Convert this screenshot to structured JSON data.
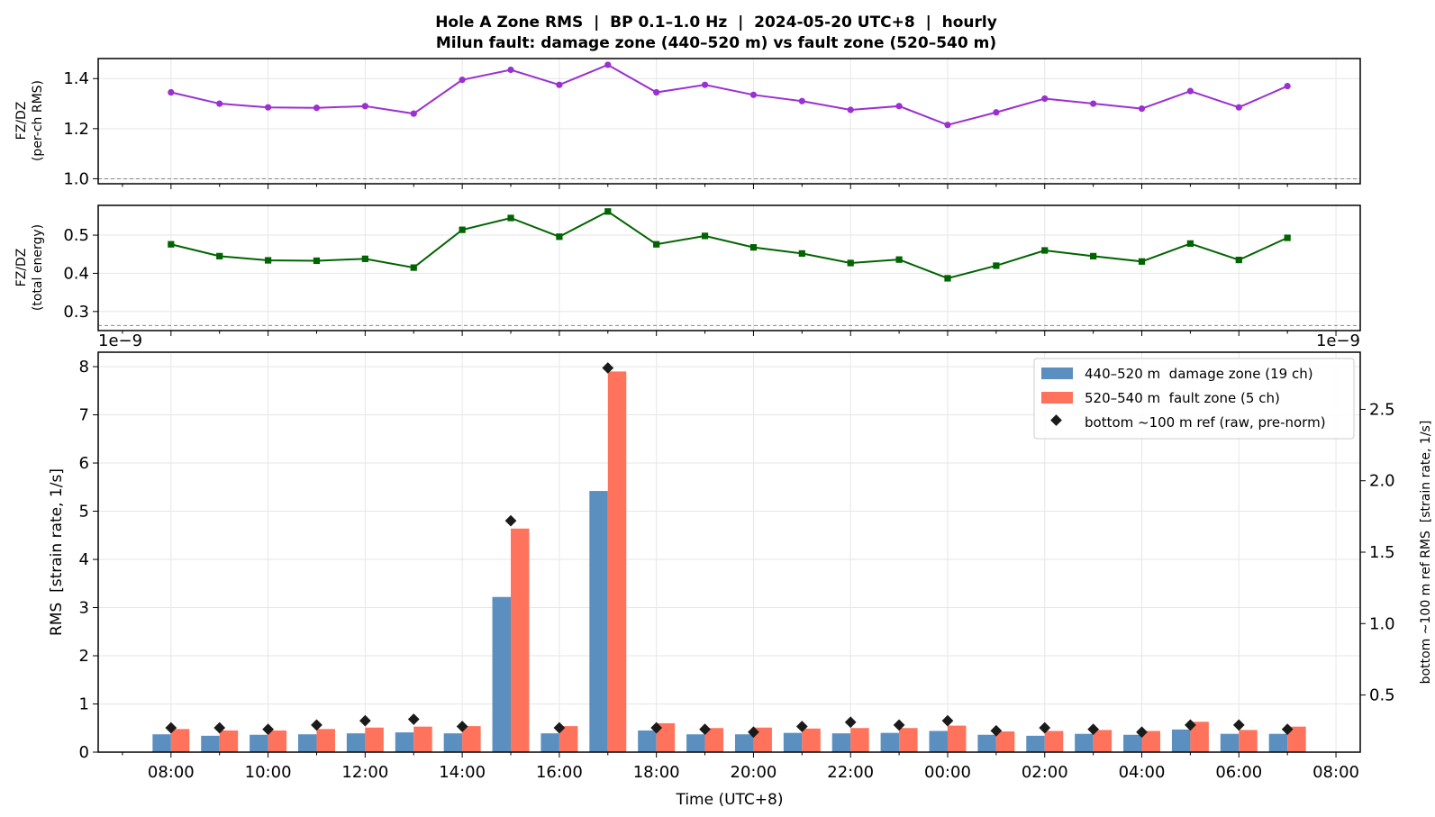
{
  "title_line1": "Hole A Zone RMS  |  BP 0.1–1.0 Hz  |  2024-05-20 UTC+8  |  hourly",
  "title_line2": "Milun fault: damage zone (440–520 m) vs fault zone (520–540 m)",
  "colors": {
    "ratio_rms": "#9b30d0",
    "ratio_energy": "#006400",
    "damage_zone": "#5b8fc0",
    "fault_zone": "#ff735c",
    "ref": "#1a1a1a",
    "grid": "#e6e6e6",
    "refline": "#888888"
  },
  "chart_data": [
    {
      "type": "line",
      "ylabel_line1": "FZ/DZ",
      "ylabel_line2": "(per-ch RMS)",
      "x_hours": [
        8,
        9,
        10,
        11,
        12,
        13,
        14,
        15,
        16,
        17,
        18,
        19,
        20,
        21,
        22,
        23,
        24,
        25,
        26,
        27,
        28,
        29,
        30,
        31
      ],
      "values": [
        1.345,
        1.3,
        1.285,
        1.283,
        1.29,
        1.26,
        1.395,
        1.435,
        1.375,
        1.455,
        1.345,
        1.375,
        1.335,
        1.31,
        1.275,
        1.29,
        1.215,
        1.265,
        1.32,
        1.3,
        1.28,
        1.35,
        1.285,
        1.37
      ],
      "ylim": [
        0.98,
        1.48
      ],
      "yticks": [
        1.0,
        1.2,
        1.4
      ],
      "ytick_labels": [
        "1.0",
        "1.2",
        "1.4"
      ],
      "reference_line": 1.0,
      "marker": "circle",
      "grid": true
    },
    {
      "type": "line",
      "ylabel_line1": "FZ/DZ",
      "ylabel_line2": "(total energy)",
      "x_hours": [
        8,
        9,
        10,
        11,
        12,
        13,
        14,
        15,
        16,
        17,
        18,
        19,
        20,
        21,
        22,
        23,
        24,
        25,
        26,
        27,
        28,
        29,
        30,
        31
      ],
      "values": [
        0.476,
        0.445,
        0.434,
        0.433,
        0.438,
        0.415,
        0.514,
        0.545,
        0.496,
        0.562,
        0.476,
        0.498,
        0.468,
        0.452,
        0.427,
        0.436,
        0.387,
        0.42,
        0.46,
        0.445,
        0.431,
        0.478,
        0.435,
        0.493
      ],
      "ylim": [
        0.25,
        0.578
      ],
      "yticks": [
        0.3,
        0.4,
        0.5
      ],
      "ytick_labels": [
        "0.3",
        "0.4",
        "0.5"
      ],
      "reference_line": 0.2632,
      "marker": "square",
      "grid": true
    },
    {
      "type": "bar",
      "xlabel": "Time (UTC+8)",
      "ylabel": "RMS  [strain rate, 1/s]",
      "y2label": "bottom ~100 m ref RMS  [strain rate, 1/s]",
      "offset_text_left": "1e−9",
      "offset_text_right": "1e−9",
      "x_hours": [
        8,
        9,
        10,
        11,
        12,
        13,
        14,
        15,
        16,
        17,
        18,
        19,
        20,
        21,
        22,
        23,
        24,
        25,
        26,
        27,
        28,
        29,
        30,
        31
      ],
      "x_tick_hours": [
        8,
        10,
        12,
        14,
        16,
        18,
        20,
        22,
        24,
        26,
        28,
        30,
        32
      ],
      "x_tick_labels": [
        "08:00",
        "10:00",
        "12:00",
        "14:00",
        "16:00",
        "18:00",
        "20:00",
        "22:00",
        "00:00",
        "02:00",
        "04:00",
        "06:00",
        "08:00"
      ],
      "xlim": [
        6.5,
        32.5
      ],
      "series": [
        {
          "name": "440–520 m  damage zone (19 ch)",
          "values": [
            0.37,
            0.34,
            0.36,
            0.37,
            0.39,
            0.41,
            0.39,
            3.22,
            0.39,
            5.42,
            0.45,
            0.37,
            0.37,
            0.4,
            0.39,
            0.4,
            0.44,
            0.36,
            0.34,
            0.38,
            0.36,
            0.47,
            0.38,
            0.38
          ]
        },
        {
          "name": "520–540 m  fault zone (5 ch)",
          "values": [
            0.48,
            0.45,
            0.45,
            0.48,
            0.51,
            0.53,
            0.54,
            4.64,
            0.54,
            7.9,
            0.6,
            0.5,
            0.51,
            0.49,
            0.5,
            0.5,
            0.55,
            0.43,
            0.44,
            0.46,
            0.44,
            0.63,
            0.46,
            0.53
          ]
        }
      ],
      "ref_series": {
        "name": "bottom ~100 m ref (raw, pre-norm)",
        "values": [
          0.27,
          0.27,
          0.26,
          0.29,
          0.32,
          0.33,
          0.28,
          1.72,
          0.27,
          2.79,
          0.27,
          0.26,
          0.24,
          0.28,
          0.31,
          0.29,
          0.32,
          0.25,
          0.27,
          0.26,
          0.24,
          0.29,
          0.29,
          0.26
        ]
      },
      "ylim": [
        0,
        8.3
      ],
      "yticks": [
        0,
        1,
        2,
        3,
        4,
        5,
        6,
        7,
        8
      ],
      "y2lim": [
        0.1,
        2.9
      ],
      "y2ticks": [
        0.5,
        1.0,
        1.5,
        2.0,
        2.5
      ],
      "y2tick_labels": [
        "0.5",
        "1.0",
        "1.5",
        "2.0",
        "2.5"
      ],
      "legend_position": "upper right",
      "grid": true
    }
  ]
}
